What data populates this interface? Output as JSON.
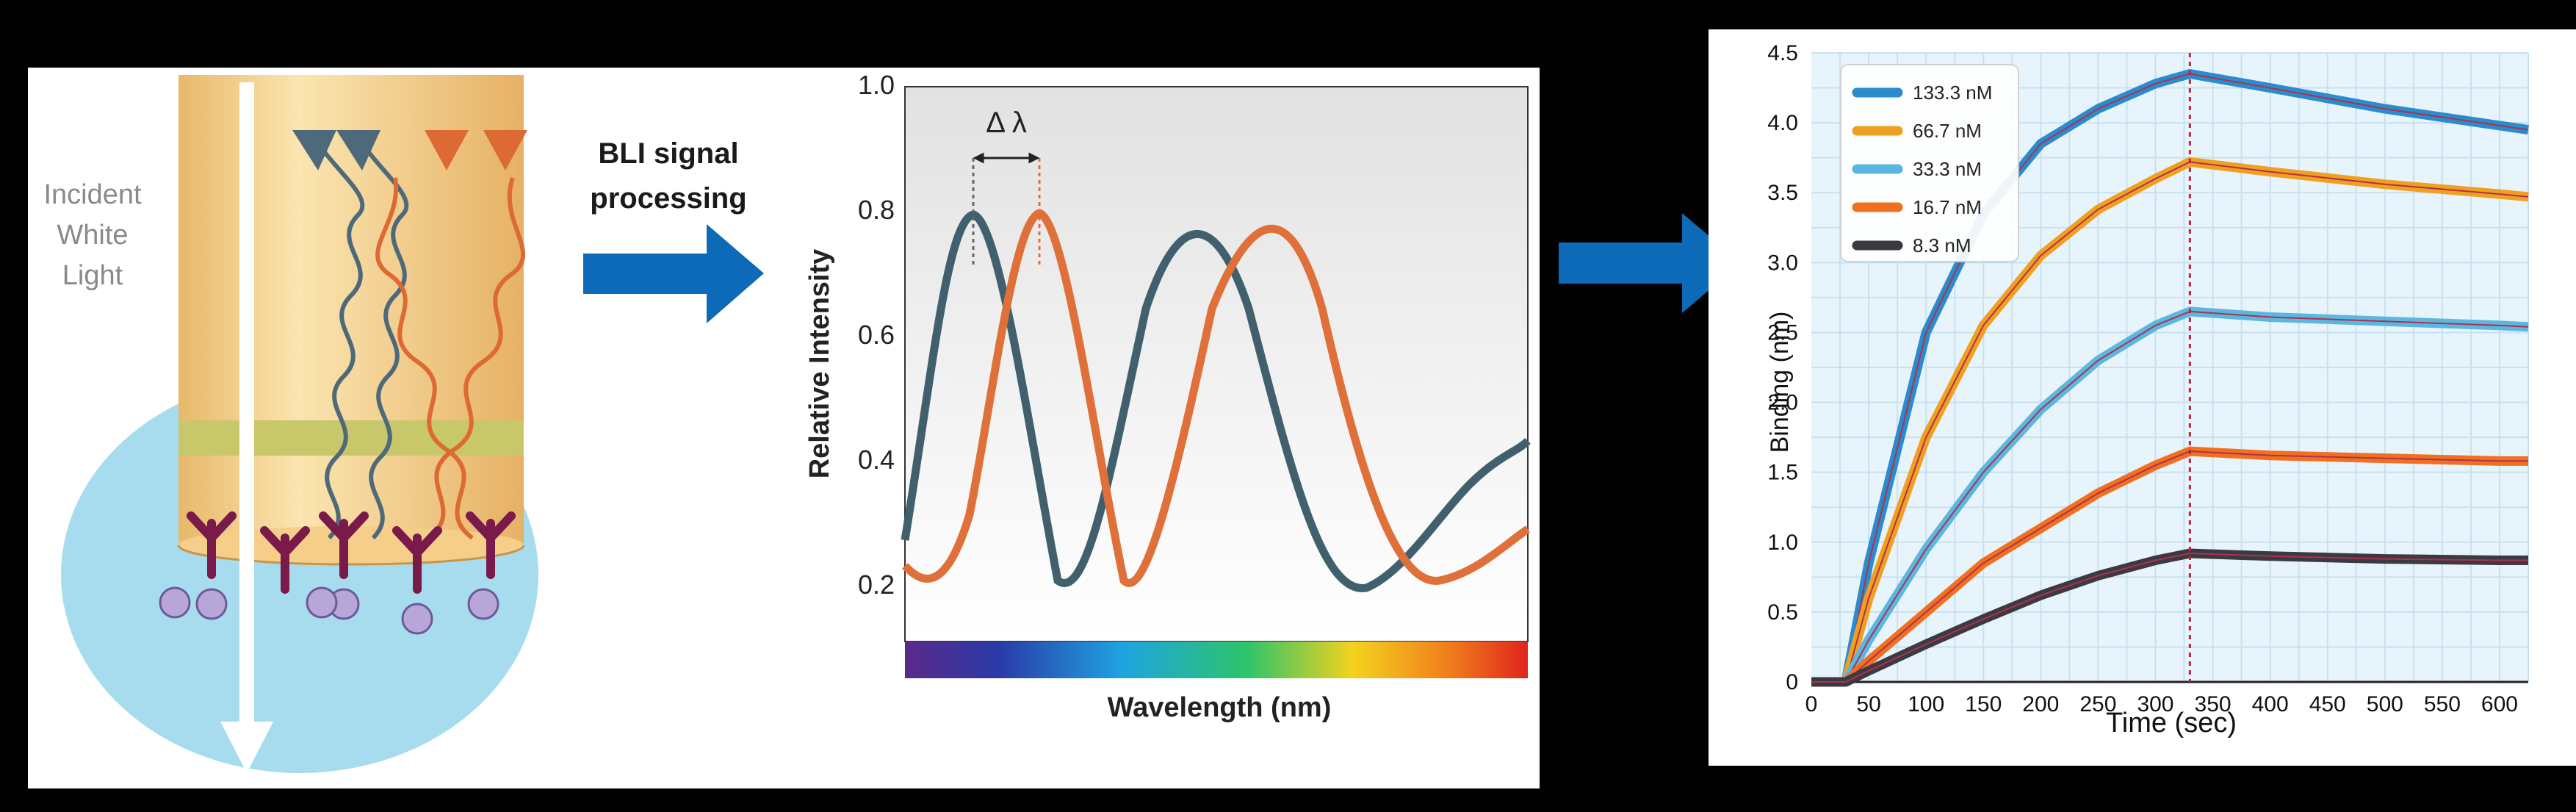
{
  "panel1": {
    "incident_label": [
      "Incident",
      "White",
      "Light"
    ]
  },
  "processing_label": [
    "BLI signal",
    "processing"
  ],
  "spectrum": {
    "delta_label": "Δ λ",
    "ylabel": "Relative Intensity",
    "xlabel": "Wavelength (nm)",
    "yticks": [
      "1.0",
      "0.8",
      "0.6",
      "0.4",
      "0.2"
    ],
    "colors": {
      "reference": "#40606e",
      "shifted": "#e0703a"
    }
  },
  "chart_data": {
    "type": "line",
    "xlabel": "Time (sec)",
    "ylabel": "Binding (nm)",
    "xlim": [
      0,
      625
    ],
    "ylim": [
      0,
      4.5
    ],
    "xticks": [
      "0",
      "50",
      "100",
      "150",
      "200",
      "250",
      "300",
      "350",
      "400",
      "450",
      "500",
      "550",
      "600"
    ],
    "yticks": [
      "0",
      "0.5",
      "1.0",
      "1.5",
      "2.0",
      "2.5",
      "3.0",
      "3.5",
      "4.0",
      "4.5"
    ],
    "grid": true,
    "legend_position": "top-left",
    "association_end": 330,
    "x": [
      0,
      30,
      50,
      100,
      150,
      200,
      250,
      300,
      330,
      400,
      500,
      600,
      625
    ],
    "series": [
      {
        "name": "133.3 nM",
        "color": "#2a8ccc",
        "values": [
          0,
          0,
          0.85,
          2.5,
          3.35,
          3.85,
          4.1,
          4.28,
          4.35,
          4.25,
          4.1,
          3.98,
          3.95
        ]
      },
      {
        "name": "66.7 nM",
        "color": "#f0a020",
        "values": [
          0,
          0,
          0.6,
          1.75,
          2.55,
          3.05,
          3.38,
          3.6,
          3.72,
          3.65,
          3.56,
          3.49,
          3.47
        ]
      },
      {
        "name": "33.3 nM",
        "color": "#5ab8e0",
        "values": [
          0,
          0,
          0.3,
          0.95,
          1.5,
          1.95,
          2.3,
          2.55,
          2.65,
          2.61,
          2.58,
          2.55,
          2.54
        ]
      },
      {
        "name": "16.7 nM",
        "color": "#f07020",
        "values": [
          0,
          0,
          0.15,
          0.5,
          0.85,
          1.1,
          1.35,
          1.55,
          1.65,
          1.62,
          1.6,
          1.58,
          1.58
        ]
      },
      {
        "name": "8.3 nM",
        "color": "#3a3a40",
        "values": [
          0,
          0,
          0.08,
          0.27,
          0.45,
          0.62,
          0.76,
          0.87,
          0.92,
          0.9,
          0.88,
          0.87,
          0.87
        ]
      }
    ]
  }
}
